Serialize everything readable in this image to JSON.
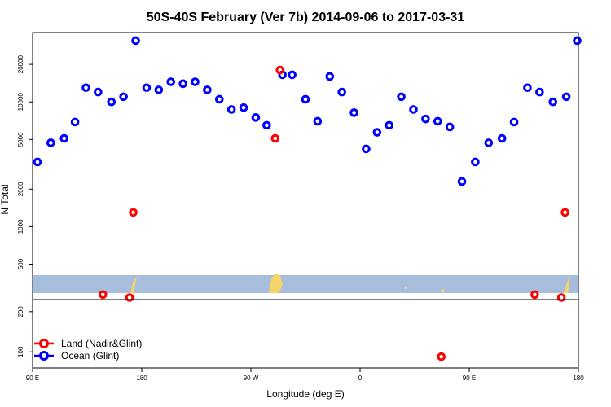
{
  "chart_data": {
    "type": "scatter",
    "title": "50S-40S February (Ver 7b)   2014-09-06 to 2017-03-31",
    "xlabel": "Longitude (deg E)",
    "ylabel": "N Total",
    "x_ticks": [
      {
        "value": 90,
        "label": "90 E"
      },
      {
        "value": 180,
        "label": "180"
      },
      {
        "value": 270,
        "label": "90 W"
      },
      {
        "value": 360,
        "label": "0"
      },
      {
        "value": 450,
        "label": "90 E"
      },
      {
        "value": 540,
        "label": "180"
      }
    ],
    "xlim": [
      90,
      540
    ],
    "upper_panel": {
      "scale": "log",
      "ylim": [
        260,
        36000
      ],
      "y_ticks": [
        "500",
        "1000",
        "2000",
        "5000",
        "10000",
        "20000"
      ]
    },
    "lower_panel": {
      "scale": "linear",
      "ylim": [
        60,
        230
      ],
      "y_ticks": [
        "100",
        "200"
      ]
    },
    "map_strip": {
      "ocean_color": "#a6bddb",
      "land_color": "#f5d469"
    },
    "legend": {
      "position": "bottom-left",
      "entries": [
        {
          "label": "Land (Nadir&Glint)",
          "color": "#ff0000"
        },
        {
          "label": "Ocean (Glint)",
          "color": "#0000ff"
        }
      ]
    },
    "series": [
      {
        "name": "Ocean (Glint)",
        "color": "#0000ff",
        "points": [
          [
            94,
            3300
          ],
          [
            105,
            4700
          ],
          [
            116,
            5100
          ],
          [
            125,
            6900
          ],
          [
            134,
            13000
          ],
          [
            144,
            12000
          ],
          [
            155,
            10000
          ],
          [
            165,
            11000
          ],
          [
            175,
            31000
          ],
          [
            184,
            13000
          ],
          [
            194,
            12500
          ],
          [
            204,
            14500
          ],
          [
            214,
            14000
          ],
          [
            224,
            14500
          ],
          [
            234,
            12500
          ],
          [
            244,
            10500
          ],
          [
            254,
            8700
          ],
          [
            264,
            9000
          ],
          [
            274,
            7500
          ],
          [
            283,
            6500
          ],
          [
            296,
            16500
          ],
          [
            304,
            16500
          ],
          [
            315,
            10500
          ],
          [
            325,
            7000
          ],
          [
            335,
            16000
          ],
          [
            345,
            12000
          ],
          [
            355,
            8200
          ],
          [
            365,
            4200
          ],
          [
            374,
            5700
          ],
          [
            384,
            6500
          ],
          [
            394,
            11000
          ],
          [
            404,
            8700
          ],
          [
            414,
            7300
          ],
          [
            424,
            7000
          ],
          [
            434,
            6300
          ],
          [
            444,
            2300
          ],
          [
            455,
            3300
          ],
          [
            466,
            4700
          ],
          [
            477,
            5100
          ],
          [
            487,
            6900
          ],
          [
            498,
            13000
          ],
          [
            508,
            12000
          ],
          [
            519,
            10000
          ],
          [
            530,
            11000
          ],
          [
            539,
            31000
          ]
        ],
        "lower_points": []
      },
      {
        "name": "Land (Nadir&Glint)",
        "color": "#ff0000",
        "points": [
          [
            148,
            285
          ],
          [
            170,
            270
          ],
          [
            173,
            1300
          ],
          [
            290,
            5100
          ],
          [
            294,
            18000
          ],
          [
            504,
            285
          ],
          [
            526,
            270
          ],
          [
            529,
            1300
          ]
        ],
        "lower_points": [
          [
            427,
            88
          ]
        ]
      }
    ]
  }
}
